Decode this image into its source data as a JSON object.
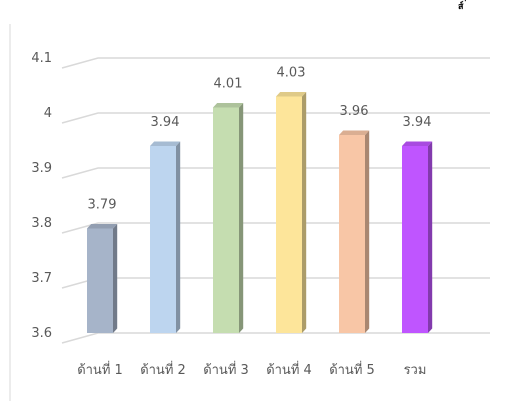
{
  "chart_data": {
    "type": "bar",
    "categories": [
      "ด้านที่ 1",
      "ด้านที่ 2",
      "ด้านที่ 3",
      "ด้านที่ 4",
      "ด้านที่ 5",
      "รวม"
    ],
    "values": [
      3.79,
      3.94,
      4.01,
      4.03,
      3.96,
      3.94
    ],
    "data_labels": [
      "3.79",
      "3.94",
      "4.01",
      "4.03",
      "3.96",
      "3.94"
    ],
    "yticks": [
      "3.6",
      "3.7",
      "3.8",
      "3.9",
      "4",
      "4.1"
    ],
    "ylim": [
      3.6,
      4.1
    ],
    "grid": true,
    "legend": "none",
    "style": "3d-column",
    "colors": [
      "#a6b4c9",
      "#bdd5ef",
      "#c5ddb0",
      "#fde59a",
      "#f8c6a6",
      "#bf55ff"
    ]
  },
  "header_fragment": "ส์ ่"
}
